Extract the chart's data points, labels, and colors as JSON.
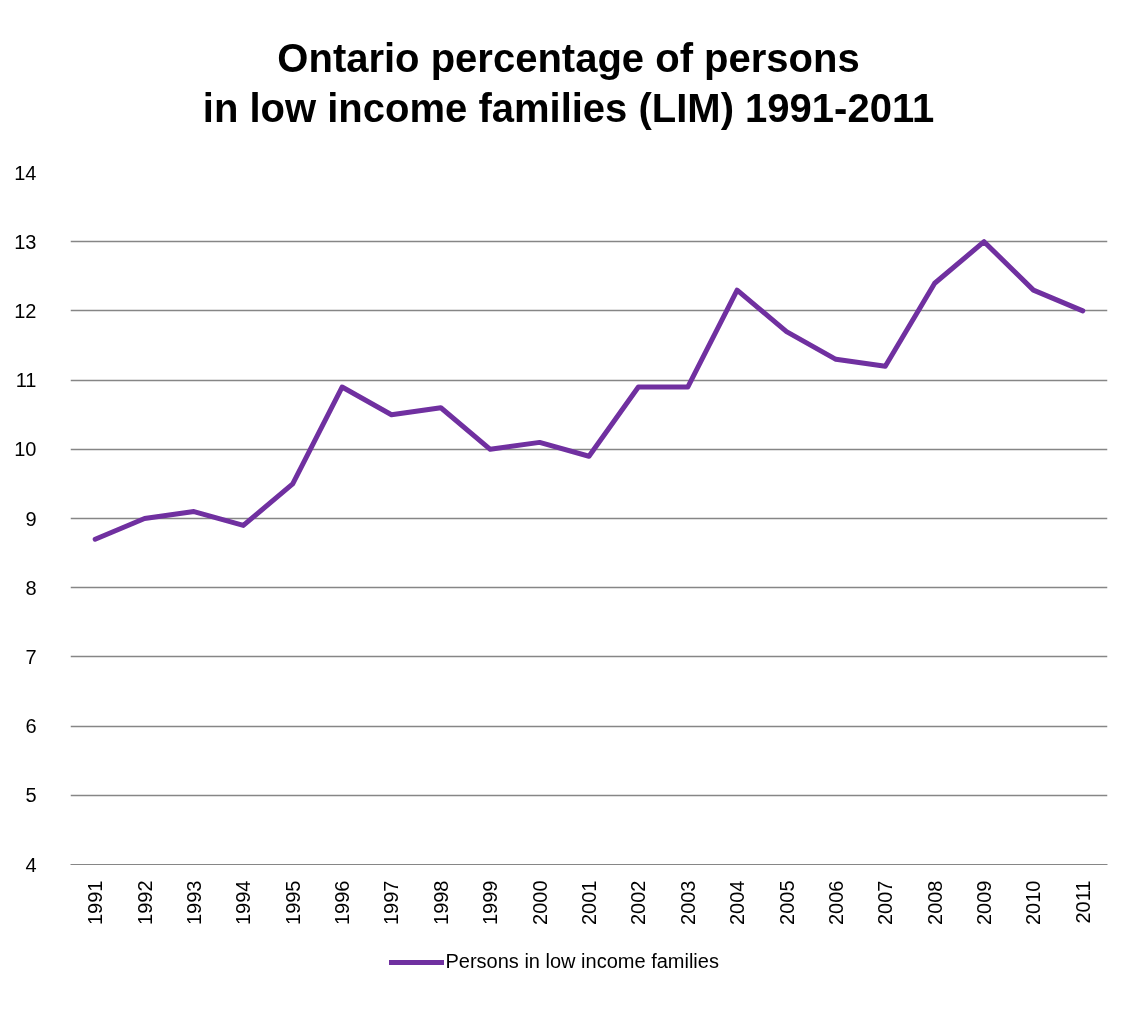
{
  "chart_data": {
    "type": "line",
    "title": "Ontario percentage of persons\nin low income families (LIM) 1991-2011",
    "categories": [
      "1991",
      "1992",
      "1993",
      "1994",
      "1995",
      "1996",
      "1997",
      "1998",
      "1999",
      "2000",
      "2001",
      "2002",
      "2003",
      "2004",
      "2005",
      "2006",
      "2007",
      "2008",
      "2009",
      "2010",
      "2011"
    ],
    "series": [
      {
        "name": "Persons in low income families",
        "color": "#7030a0",
        "values": [
          8.7,
          9.0,
          9.1,
          8.9,
          9.5,
          10.9,
          10.5,
          10.6,
          10.0,
          10.1,
          9.9,
          10.9,
          10.9,
          12.3,
          11.7,
          11.3,
          11.2,
          12.4,
          13.0,
          12.3,
          12.0
        ]
      }
    ],
    "ylim": [
      4,
      14
    ],
    "yticks": [
      4,
      5,
      6,
      7,
      8,
      9,
      10,
      11,
      12,
      13,
      14
    ],
    "grid": "y",
    "legend": "bottom",
    "line_style": "solid"
  }
}
